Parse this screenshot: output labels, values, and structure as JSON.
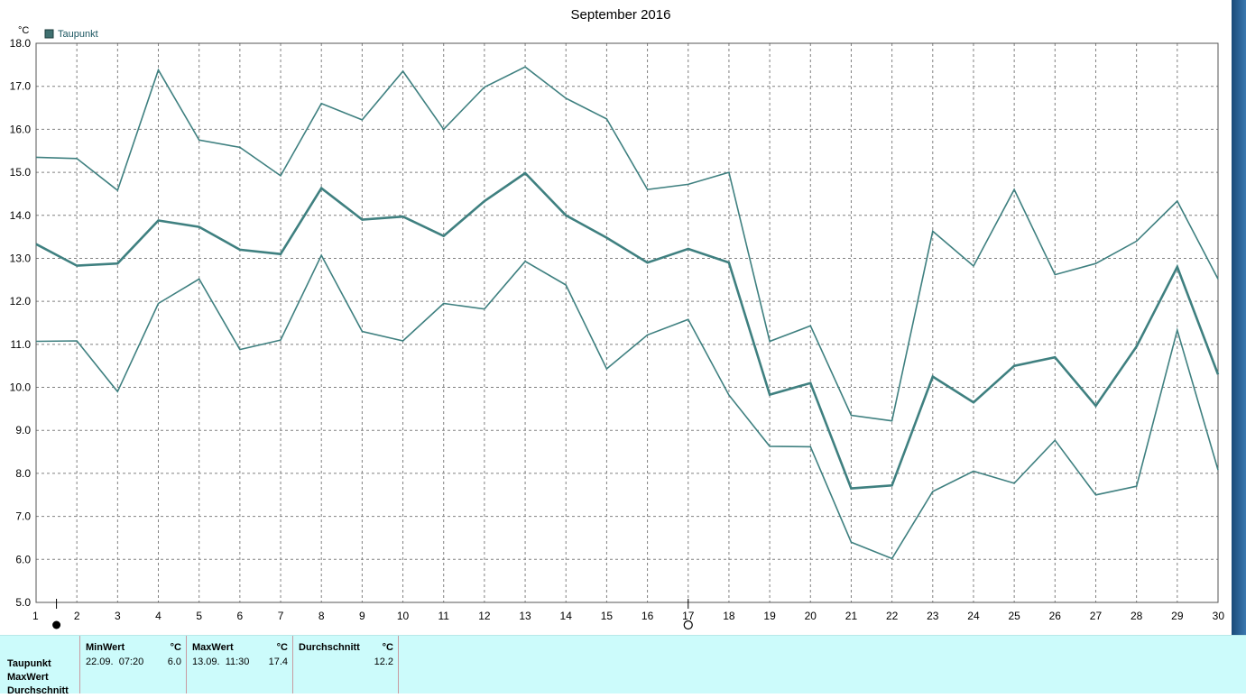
{
  "chart_data": {
    "type": "line",
    "title": "September 2016",
    "y_unit": "°C",
    "legend": [
      "Taupunkt"
    ],
    "legend_placement": "top-left",
    "grid": true,
    "x": [
      1,
      2,
      3,
      4,
      5,
      6,
      7,
      8,
      9,
      10,
      11,
      12,
      13,
      14,
      15,
      16,
      17,
      18,
      19,
      20,
      21,
      22,
      23,
      24,
      25,
      26,
      27,
      28,
      29,
      30
    ],
    "ylim": [
      5.0,
      18.0
    ],
    "yticks": [
      "5.0",
      "6.0",
      "7.0",
      "8.0",
      "9.0",
      "10.0",
      "11.0",
      "12.0",
      "13.0",
      "14.0",
      "15.0",
      "16.0",
      "17.0",
      "18.0"
    ],
    "series": [
      {
        "name": "",
        "values": [
          15.35,
          15.32,
          14.58,
          17.38,
          15.75,
          15.58,
          14.92,
          16.6,
          16.22,
          17.35,
          16.0,
          16.98,
          17.45,
          16.72,
          16.24,
          14.6,
          14.72,
          15.0,
          11.07,
          11.43,
          9.35,
          9.22,
          13.63,
          12.82,
          14.6,
          12.62,
          12.88,
          13.4,
          14.33,
          12.52
        ]
      },
      {
        "name": "",
        "values": [
          13.33,
          12.83,
          12.88,
          13.88,
          13.73,
          13.2,
          13.1,
          14.63,
          13.9,
          13.97,
          13.52,
          14.33,
          14.98,
          14.0,
          13.48,
          12.9,
          13.22,
          12.9,
          9.83,
          10.1,
          7.65,
          7.72,
          10.25,
          9.65,
          10.5,
          10.7,
          9.57,
          10.95,
          12.8,
          10.3
        ]
      },
      {
        "name": "",
        "values": [
          11.07,
          11.08,
          9.9,
          11.95,
          12.52,
          10.88,
          11.1,
          13.07,
          11.3,
          11.08,
          11.95,
          11.82,
          12.93,
          12.38,
          10.43,
          11.22,
          11.58,
          9.82,
          8.63,
          8.62,
          6.4,
          6.02,
          7.58,
          8.05,
          7.77,
          8.77,
          7.5,
          7.7,
          11.33,
          8.08
        ]
      }
    ]
  },
  "moon": {
    "new_moon_day": 1.5,
    "full_moon_day": 17
  },
  "colors": {
    "line": "#3f8080",
    "grid": "#808080",
    "stats_bg": "#ccfbfb"
  },
  "stats": {
    "row_labels": [
      "Taupunkt",
      "MaxWert",
      "Durchschnitt"
    ],
    "columns": [
      {
        "header": "MinWert",
        "unit": "°C",
        "timestamp": "22.09.  07:20",
        "value": "6.0"
      },
      {
        "header": "MaxWert",
        "unit": "°C",
        "timestamp": "13.09.  11:30",
        "value": "17.4"
      },
      {
        "header": "Durchschnitt",
        "unit": "°C",
        "timestamp": "",
        "value": "12.2"
      }
    ]
  }
}
